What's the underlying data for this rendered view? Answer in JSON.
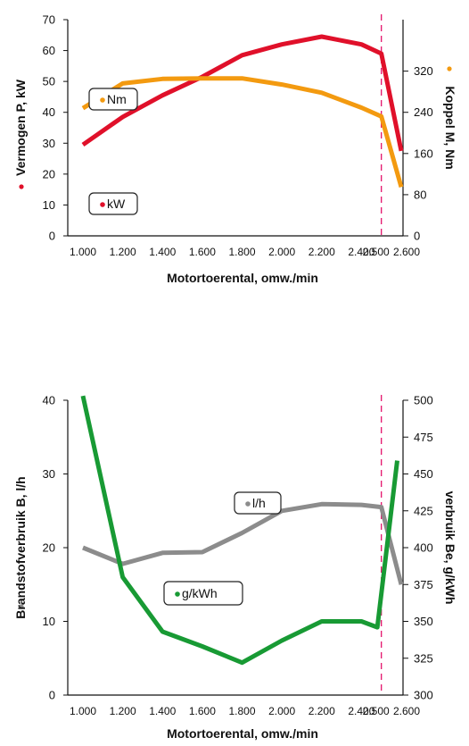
{
  "chart_data": [
    {
      "type": "line",
      "xlabel": "Motortoerental, omw./min",
      "ylabel_left": "Vermogen P, kW",
      "ylabel_right": "Koppel M, Nm",
      "x": [
        1000,
        1200,
        1400,
        1600,
        1800,
        2000,
        2200,
        2400,
        2500,
        2600
      ],
      "x_tick_labels": [
        "1.000",
        "1.200",
        "1.400",
        "1.600",
        "1.800",
        "2.000",
        "2.200",
        "2.400",
        "2.500",
        "2.600"
      ],
      "xlim": [
        1000,
        2600
      ],
      "ylim_left": [
        0,
        70
      ],
      "yticks_left": [
        "0",
        "10",
        "20",
        "30",
        "40",
        "50",
        "60",
        "70"
      ],
      "ylim_right": [
        0,
        420
      ],
      "yticks_right": [
        "0",
        "80",
        "160",
        "240",
        "320"
      ],
      "reference_line_x": 2500,
      "series": [
        {
          "name": "kW",
          "axis": "left",
          "color": "#e0102a",
          "x": [
            1000,
            1200,
            1400,
            1600,
            1800,
            2000,
            2200,
            2400,
            2500,
            2600
          ],
          "values": [
            29.5,
            38.5,
            45.5,
            51.5,
            58.5,
            62,
            64.5,
            62,
            59,
            27.5
          ]
        },
        {
          "name": "Nm",
          "axis": "right",
          "color": "#f39a10",
          "x": [
            1000,
            1200,
            1400,
            1600,
            1800,
            2000,
            2200,
            2400,
            2500,
            2600
          ],
          "values": [
            248,
            296,
            305,
            306,
            306,
            294,
            278,
            249,
            232,
            95
          ]
        }
      ],
      "callouts": [
        {
          "text": "Nm",
          "series": "Nm",
          "color": "#f39a10"
        },
        {
          "text": "kW",
          "series": "kW",
          "color": "#e0102a"
        }
      ]
    },
    {
      "type": "line",
      "xlabel": "Motortoerental, omw./min",
      "ylabel_left": "Brandstofverbruik B, l/h",
      "ylabel_right": "verbruik Be, g/kWh",
      "x": [
        1000,
        1200,
        1400,
        1600,
        1800,
        2000,
        2200,
        2400,
        2500,
        2600
      ],
      "x_tick_labels": [
        "1.000",
        "1.200",
        "1.400",
        "1.600",
        "1.800",
        "2.000",
        "2.200",
        "2.400",
        "2.500",
        "2.600"
      ],
      "xlim": [
        1000,
        2600
      ],
      "ylim_left": [
        0,
        40
      ],
      "yticks_left": [
        "0",
        "10",
        "20",
        "30",
        "40"
      ],
      "ylim_right": [
        300,
        500
      ],
      "yticks_right": [
        "300",
        "325",
        "350",
        "375",
        "400",
        "425",
        "450",
        "475",
        "500"
      ],
      "reference_line_x": 2500,
      "series": [
        {
          "name": "l/h",
          "axis": "left",
          "color": "#8c8c8c",
          "x": [
            1000,
            1200,
            1400,
            1600,
            1800,
            2000,
            2200,
            2400,
            2500,
            2600
          ],
          "values": [
            20,
            17.8,
            19.3,
            19.4,
            22,
            25,
            25.9,
            25.8,
            25.5,
            15
          ]
        },
        {
          "name": "g/kWh",
          "axis": "right",
          "color": "#189a34",
          "x": [
            1000,
            1200,
            1400,
            1600,
            1800,
            2000,
            2200,
            2400,
            2480,
            2580
          ],
          "values": [
            503,
            380,
            343,
            333,
            322,
            337,
            350,
            350,
            346,
            459
          ]
        }
      ],
      "callouts": [
        {
          "text": "l/h",
          "series": "l/h",
          "color": "#8c8c8c"
        },
        {
          "text": "g/kWh",
          "series": "g/kWh",
          "color": "#189a34"
        }
      ]
    }
  ]
}
